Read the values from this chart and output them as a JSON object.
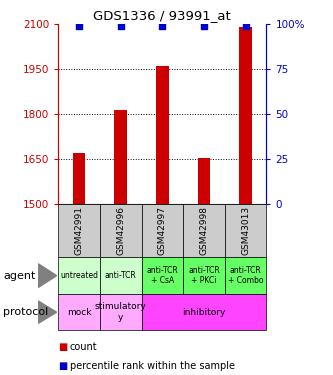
{
  "title": "GDS1336 / 93991_at",
  "samples": [
    "GSM42991",
    "GSM42996",
    "GSM42997",
    "GSM42998",
    "GSM43013"
  ],
  "counts": [
    1670,
    1815,
    1960,
    1655,
    2090
  ],
  "percentiles": [
    99,
    99,
    99,
    99,
    99
  ],
  "ylim_left": [
    1500,
    2100
  ],
  "ylim_right": [
    0,
    100
  ],
  "yticks_left": [
    1500,
    1650,
    1800,
    1950,
    2100
  ],
  "yticks_right": [
    0,
    25,
    50,
    75,
    100
  ],
  "agent_labels": [
    "untreated",
    "anti-TCR",
    "anti-TCR\n+ CsA",
    "anti-TCR\n+ PKCi",
    "anti-TCR\n+ Combo"
  ],
  "protocol_data": [
    [
      0,
      1,
      "mock"
    ],
    [
      1,
      2,
      "stimulatory\ny"
    ],
    [
      2,
      5,
      "inhibitory"
    ]
  ],
  "agent_color_light": "#ccffcc",
  "agent_color_dark": "#66ff66",
  "protocol_color_light": "#ffaaff",
  "protocol_color_dark": "#ff44ff",
  "sample_box_color": "#cccccc",
  "bar_color": "#cc0000",
  "dot_color": "#0000cc",
  "left_axis_color": "#cc0000",
  "right_axis_color": "#0000cc",
  "bar_width": 0.3
}
